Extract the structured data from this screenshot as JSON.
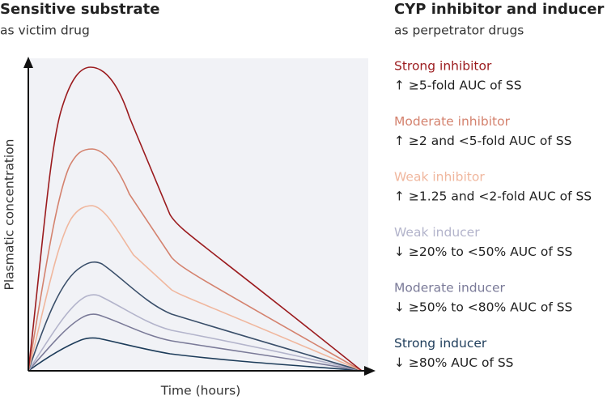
{
  "left_header": {
    "title": "Sensitive substrate",
    "subtitle": "as victim drug"
  },
  "right_header": {
    "title": "CYP inhibitor and inducer",
    "subtitle": "as perpetrator drugs"
  },
  "axes": {
    "y_label": "Plasmatic concentration",
    "x_label": "Time (hours)"
  },
  "legend": [
    {
      "name": "Strong inhibitor",
      "description": "↑ ≥5-fold AUC of SS",
      "color": "#9b1b1e"
    },
    {
      "name": "Moderate inhibitor",
      "description": "↑ ≥2 and <5-fold AUC of SS",
      "color": "#d4826e"
    },
    {
      "name": "Weak inhibitor",
      "description": "↑ ≥1.25 and <2-fold AUC of SS",
      "color": "#f0b79e"
    },
    {
      "name": "Weak inducer",
      "description": "↓ ≥20% to <50% AUC of SS",
      "color": "#b3b4cb"
    },
    {
      "name": "Moderate inducer",
      "description": "↓ ≥50% to <80% AUC of SS",
      "color": "#7a7a98"
    },
    {
      "name": "Strong inducer",
      "description": "↓ ≥80% AUC of SS",
      "color": "#1d3c5a"
    }
  ]
}
